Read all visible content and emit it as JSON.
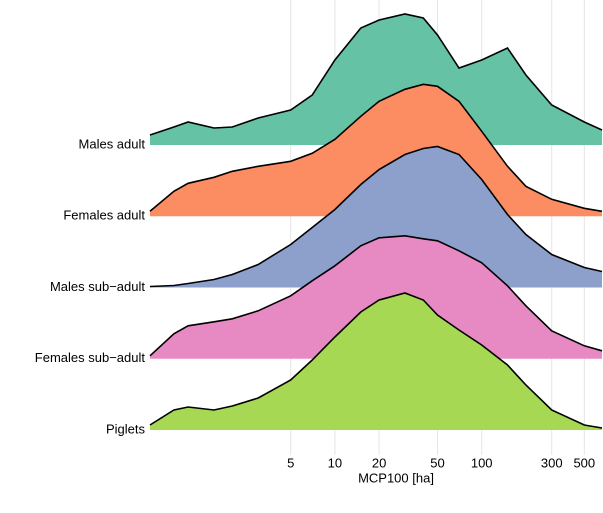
{
  "chart_data": {
    "type": "ridgeline",
    "xlabel": "MCP100 [ha]",
    "log_x": true,
    "grid": true,
    "xlim": [
      0.55,
      660
    ],
    "xticks": [
      5,
      10,
      20,
      50,
      100,
      300,
      500
    ],
    "x": [
      0.55,
      0.8,
      1,
      1.5,
      2,
      3,
      5,
      7,
      10,
      15,
      20,
      30,
      40,
      50,
      70,
      100,
      150,
      200,
      300,
      500,
      660
    ],
    "series": [
      {
        "name": "Males adult",
        "color": "#66c2a5",
        "values": [
          0.1,
          0.18,
          0.23,
          0.17,
          0.18,
          0.27,
          0.35,
          0.5,
          0.85,
          1.17,
          1.25,
          1.31,
          1.27,
          1.1,
          0.77,
          0.85,
          0.97,
          0.7,
          0.4,
          0.23,
          0.15
        ]
      },
      {
        "name": "Females adult",
        "color": "#fc8d62",
        "values": [
          0.05,
          0.25,
          0.33,
          0.39,
          0.45,
          0.5,
          0.55,
          0.63,
          0.77,
          1.0,
          1.15,
          1.27,
          1.32,
          1.3,
          1.15,
          0.85,
          0.5,
          0.3,
          0.17,
          0.08,
          0.05
        ]
      },
      {
        "name": "Males sub−adult",
        "color": "#8da0cb",
        "values": [
          0.01,
          0.02,
          0.04,
          0.08,
          0.13,
          0.23,
          0.43,
          0.6,
          0.78,
          1.03,
          1.18,
          1.33,
          1.39,
          1.41,
          1.33,
          1.08,
          0.73,
          0.53,
          0.33,
          0.2,
          0.16
        ]
      },
      {
        "name": "Females sub−adult",
        "color": "#e78ac3",
        "values": [
          0.03,
          0.25,
          0.33,
          0.37,
          0.4,
          0.48,
          0.63,
          0.78,
          0.93,
          1.13,
          1.21,
          1.23,
          1.2,
          1.18,
          1.08,
          0.96,
          0.73,
          0.53,
          0.28,
          0.13,
          0.08
        ]
      },
      {
        "name": "Piglets",
        "color": "#a6d854",
        "values": [
          0.05,
          0.2,
          0.23,
          0.2,
          0.24,
          0.32,
          0.5,
          0.7,
          0.93,
          1.18,
          1.3,
          1.37,
          1.3,
          1.15,
          1.0,
          0.85,
          0.65,
          0.45,
          0.2,
          0.05,
          0.02
        ]
      }
    ]
  }
}
